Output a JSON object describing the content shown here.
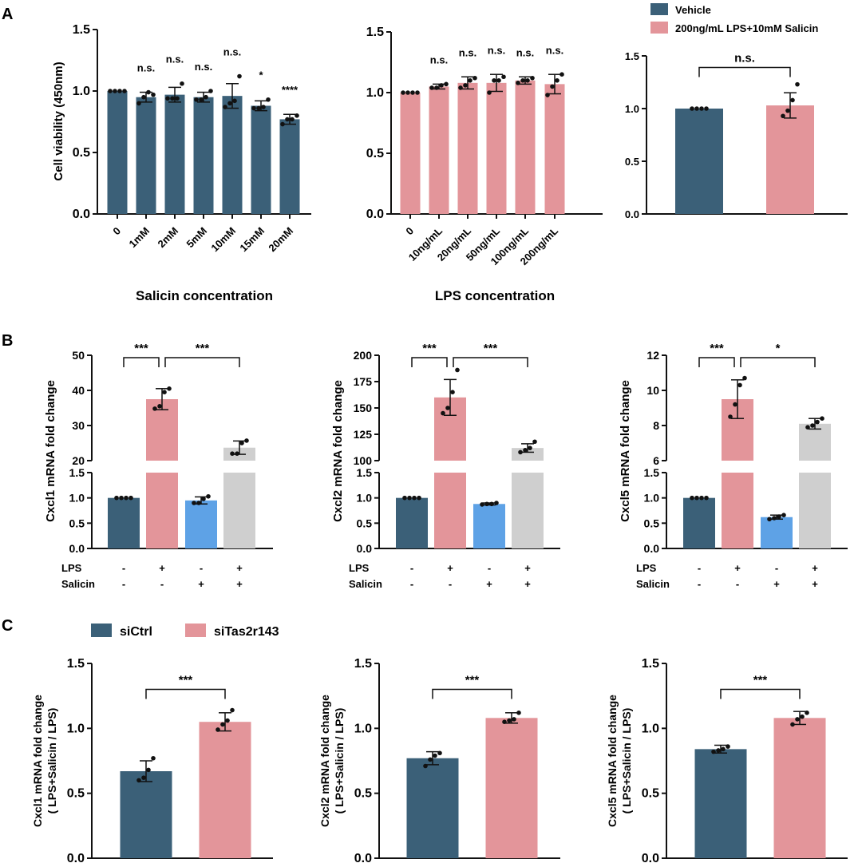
{
  "panel_labels": [
    "A",
    "B",
    "C"
  ],
  "colors": {
    "dark": "#3b6078",
    "pink": "#e3959a",
    "blue": "#5ea2e6",
    "grey": "#cfcfcf"
  },
  "legend_a": [
    "Vehicle",
    "200ng/mL LPS+10mM Salicin"
  ],
  "legend_c": [
    "siCtrl",
    "siTas2r143"
  ],
  "chart_data": [
    {
      "type": "bar",
      "ylabel": "Cell viability (450nm)",
      "xlabel": "Salicin concentration",
      "ylim": [
        0,
        1.5
      ],
      "yticks": [
        "0.0",
        "0.5",
        "1.0",
        "1.5"
      ],
      "categories": [
        "0",
        "1mM",
        "2mM",
        "5mM",
        "10mM",
        "15mM",
        "20mM"
      ],
      "values": [
        1.0,
        0.95,
        0.97,
        0.95,
        0.96,
        0.88,
        0.77
      ],
      "error": [
        0,
        0.04,
        0.06,
        0.04,
        0.1,
        0.04,
        0.04
      ],
      "points": [
        [
          1,
          1,
          1,
          1
        ],
        [
          0.9,
          0.95,
          0.99,
          0.97
        ],
        [
          0.94,
          0.94,
          0.94,
          1.06
        ],
        [
          0.93,
          0.93,
          0.95,
          1.0
        ],
        [
          0.87,
          0.9,
          0.92,
          1.12
        ],
        [
          0.86,
          0.86,
          0.87,
          0.93
        ],
        [
          0.73,
          0.77,
          0.77,
          0.8
        ]
      ],
      "significance": [
        "",
        "n.s.",
        "n.s.",
        "n.s.",
        "n.s.",
        "*",
        "****"
      ],
      "colors": [
        "dark",
        "dark",
        "dark",
        "dark",
        "dark",
        "dark",
        "dark"
      ]
    },
    {
      "type": "bar",
      "ylabel": "",
      "xlabel": "LPS concentration",
      "ylim": [
        0,
        1.5
      ],
      "yticks": [
        "0.0",
        "0.5",
        "1.0",
        "1.5"
      ],
      "categories": [
        "0",
        "10ng/mL",
        "20ng/mL",
        "50ng/mL",
        "100ng/mL",
        "200ng/mL"
      ],
      "values": [
        1.0,
        1.05,
        1.08,
        1.08,
        1.1,
        1.07
      ],
      "error": [
        0,
        0.02,
        0.05,
        0.07,
        0.03,
        0.08
      ],
      "points": [
        [
          1,
          1,
          1,
          1
        ],
        [
          1.04,
          1.04,
          1.06,
          1.07
        ],
        [
          1.04,
          1.06,
          1.1,
          1.12
        ],
        [
          1.0,
          1.1,
          1.1,
          1.13
        ],
        [
          1.08,
          1.1,
          1.1,
          1.12
        ],
        [
          0.98,
          1.05,
          1.1,
          1.15
        ]
      ],
      "significance": [
        "",
        "n.s.",
        "n.s.",
        "n.s.",
        "n.s.",
        "n.s."
      ],
      "colors": [
        "pink",
        "pink",
        "pink",
        "pink",
        "pink",
        "pink"
      ]
    },
    {
      "type": "bar",
      "ylabel": "",
      "xlabel": "",
      "ylim": [
        0,
        1.5
      ],
      "yticks": [
        "0.0",
        "0.5",
        "1.0",
        "1.5"
      ],
      "categories": [
        "Vehicle",
        "200ng/mL LPS+10mM Salicin"
      ],
      "show_categories": false,
      "values": [
        1.0,
        1.03
      ],
      "error": [
        0,
        0.12
      ],
      "points": [
        [
          1,
          1,
          1,
          1
        ],
        [
          0.93,
          0.98,
          1.08,
          1.23
        ]
      ],
      "comparisons": [
        {
          "from": 0,
          "to": 1,
          "label": "n.s.",
          "at": 1.39
        }
      ],
      "colors": [
        "dark",
        "pink"
      ]
    },
    {
      "type": "bar",
      "ylabel": "Cxcl1 mRNA fold change",
      "broken_axis": {
        "lower": [
          0,
          1.5
        ],
        "upper": [
          20,
          50
        ]
      },
      "yticks_lower": [
        "0.0",
        "0.5",
        "1.0",
        "1.5"
      ],
      "yticks_upper": [
        "20",
        "30",
        "40",
        "50"
      ],
      "conditions": {
        "LPS": [
          "-",
          "+",
          "-",
          "+"
        ],
        "Salicin": [
          "-",
          "-",
          "+",
          "+"
        ]
      },
      "values": [
        1.0,
        37.5,
        0.95,
        23.7
      ],
      "error": [
        0,
        3,
        0.07,
        1.9
      ],
      "points": [
        [
          1,
          1,
          1,
          1
        ],
        [
          34.8,
          35.5,
          39.5,
          40.5
        ],
        [
          0.9,
          0.9,
          0.98,
          1.03
        ],
        [
          22,
          22,
          25,
          25.7
        ]
      ],
      "comparisons": [
        {
          "from": 0,
          "to": 1,
          "label": "***"
        },
        {
          "from": 1,
          "to": 3,
          "label": "***"
        }
      ],
      "colors": [
        "dark",
        "pink",
        "blue",
        "grey"
      ]
    },
    {
      "type": "bar",
      "ylabel": "Cxcl2 mRNA fold change",
      "broken_axis": {
        "lower": [
          0,
          1.5
        ],
        "upper": [
          100,
          200
        ]
      },
      "yticks_lower": [
        "0.0",
        "0.5",
        "1.0",
        "1.5"
      ],
      "yticks_upper": [
        "100",
        "125",
        "150",
        "175",
        "200"
      ],
      "conditions": {
        "LPS": [
          "-",
          "+",
          "-",
          "+"
        ],
        "Salicin": [
          "-",
          "-",
          "+",
          "+"
        ]
      },
      "values": [
        1.0,
        160,
        0.88,
        112
      ],
      "error": [
        0,
        17,
        0.02,
        4
      ],
      "points": [
        [
          1,
          1,
          1,
          1
        ],
        [
          145,
          150,
          165,
          186
        ],
        [
          0.87,
          0.88,
          0.88,
          0.9
        ],
        [
          108,
          110,
          112,
          118
        ]
      ],
      "comparisons": [
        {
          "from": 0,
          "to": 1,
          "label": "***"
        },
        {
          "from": 1,
          "to": 3,
          "label": "***"
        }
      ],
      "colors": [
        "dark",
        "pink",
        "blue",
        "grey"
      ]
    },
    {
      "type": "bar",
      "ylabel": "Cxcl5 mRNA fold change",
      "broken_axis": {
        "lower": [
          0,
          1.5
        ],
        "upper": [
          6,
          12
        ]
      },
      "yticks_lower": [
        "0.0",
        "0.5",
        "1.0",
        "1.5"
      ],
      "yticks_upper": [
        "6",
        "8",
        "10",
        "12"
      ],
      "conditions": {
        "LPS": [
          "-",
          "+",
          "-",
          "+"
        ],
        "Salicin": [
          "-",
          "-",
          "+",
          "+"
        ]
      },
      "values": [
        1.0,
        9.5,
        0.62,
        8.1
      ],
      "error": [
        0,
        1.1,
        0.04,
        0.3
      ],
      "points": [
        [
          1,
          1,
          1,
          1
        ],
        [
          8.5,
          9.2,
          10.3,
          10.7
        ],
        [
          0.58,
          0.6,
          0.63,
          0.66
        ],
        [
          7.9,
          8.0,
          8.2,
          8.4
        ]
      ],
      "comparisons": [
        {
          "from": 0,
          "to": 1,
          "label": "***"
        },
        {
          "from": 1,
          "to": 3,
          "label": "*"
        }
      ],
      "colors": [
        "dark",
        "pink",
        "blue",
        "grey"
      ]
    },
    {
      "type": "bar",
      "ylabel": [
        "Cxcl1  mRNA fold change",
        "( LPS+Salicin / LPS)"
      ],
      "ylim": [
        0,
        1.5
      ],
      "yticks": [
        "0.0",
        "0.5",
        "1.0",
        "1.5"
      ],
      "categories": [
        "siCtrl",
        "siTas2r143"
      ],
      "show_categories": false,
      "values": [
        0.67,
        1.05
      ],
      "error": [
        0.08,
        0.07
      ],
      "points": [
        [
          0.6,
          0.62,
          0.68,
          0.77
        ],
        [
          0.99,
          1.03,
          1.06,
          1.14
        ]
      ],
      "comparisons": [
        {
          "from": 0,
          "to": 1,
          "label": "***",
          "at": 1.3
        }
      ],
      "colors": [
        "dark",
        "pink"
      ]
    },
    {
      "type": "bar",
      "ylabel": [
        "Cxcl2  mRNA fold change",
        "( LPS+Salicin / LPS)"
      ],
      "ylim": [
        0,
        1.5
      ],
      "yticks": [
        "0.0",
        "0.5",
        "1.0",
        "1.5"
      ],
      "categories": [
        "siCtrl",
        "siTas2r143"
      ],
      "show_categories": false,
      "values": [
        0.77,
        1.08
      ],
      "error": [
        0.05,
        0.04
      ],
      "points": [
        [
          0.71,
          0.76,
          0.79,
          0.81
        ],
        [
          1.05,
          1.06,
          1.07,
          1.12
        ]
      ],
      "comparisons": [
        {
          "from": 0,
          "to": 1,
          "label": "***",
          "at": 1.3
        }
      ],
      "colors": [
        "dark",
        "pink"
      ]
    },
    {
      "type": "bar",
      "ylabel": [
        "Cxcl5  mRNA fold change",
        "( LPS+Salicin / LPS)"
      ],
      "ylim": [
        0,
        1.5
      ],
      "yticks": [
        "0.0",
        "0.5",
        "1.0",
        "1.5"
      ],
      "categories": [
        "siCtrl",
        "siTas2r143"
      ],
      "show_categories": false,
      "values": [
        0.84,
        1.08
      ],
      "error": [
        0.03,
        0.05
      ],
      "points": [
        [
          0.82,
          0.83,
          0.84,
          0.86
        ],
        [
          1.03,
          1.07,
          1.09,
          1.12
        ]
      ],
      "comparisons": [
        {
          "from": 0,
          "to": 1,
          "label": "***",
          "at": 1.3
        }
      ],
      "colors": [
        "dark",
        "pink"
      ]
    }
  ]
}
